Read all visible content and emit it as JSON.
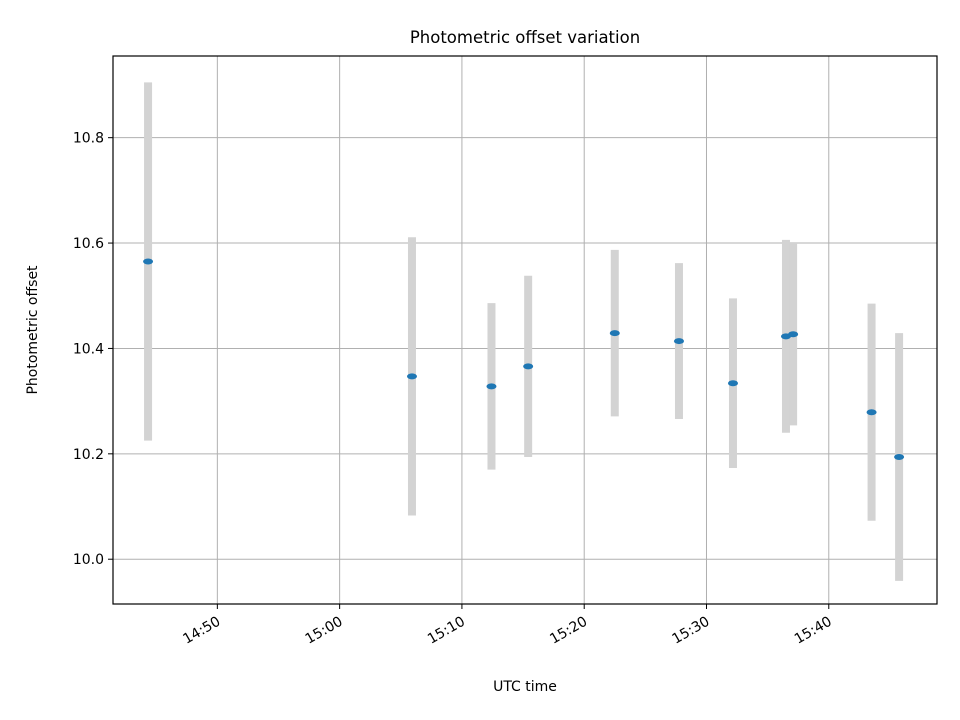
{
  "chart_data": {
    "type": "scatter",
    "title": "Photometric offset variation",
    "xlabel": "UTC time",
    "ylabel": "Photometric offset",
    "xlim": [
      "14:41:28",
      "15:48:51"
    ],
    "ylim": [
      9.915,
      10.955
    ],
    "x_ticks": [
      "14:50",
      "15:00",
      "15:10",
      "15:20",
      "15:30",
      "15:40"
    ],
    "y_ticks": [
      10.0,
      10.2,
      10.4,
      10.6,
      10.8
    ],
    "y_tick_labels": [
      "10.0",
      "10.2",
      "10.4",
      "10.6",
      "10.8"
    ],
    "grid": true,
    "series": [
      {
        "x": [
          "14:44:20",
          "15:05:55",
          "15:12:25",
          "15:15:25",
          "15:22:30",
          "15:27:45",
          "15:32:10",
          "15:36:30",
          "15:37:05",
          "15:43:30",
          "15:45:45"
        ],
        "y": [
          10.565,
          10.347,
          10.328,
          10.366,
          10.429,
          10.414,
          10.334,
          10.423,
          10.427,
          10.279,
          10.194
        ],
        "yerr": [
          0.34,
          0.264,
          0.158,
          0.172,
          0.158,
          0.148,
          0.161,
          0.183,
          0.173,
          0.206,
          0.235
        ],
        "marker_color": "#1f77b4",
        "errorbar_color": "#d3d3d3"
      }
    ]
  }
}
